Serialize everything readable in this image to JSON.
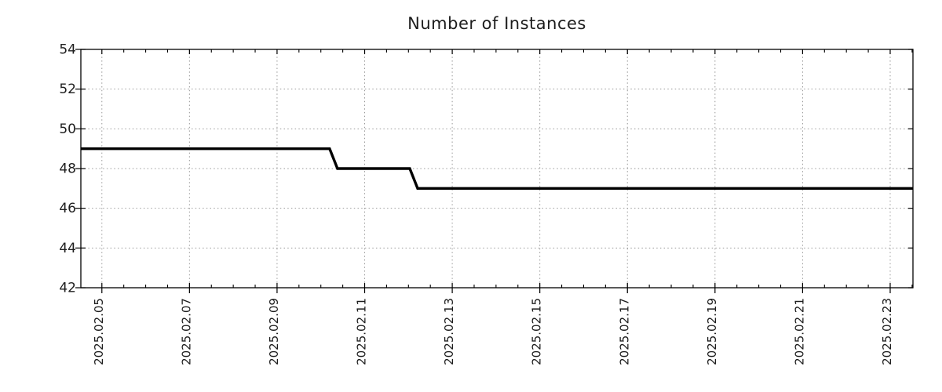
{
  "page": {
    "background_color": "#ffffff"
  },
  "chart_data": {
    "type": "line",
    "title": "Number of Instances",
    "xlabel": "",
    "ylabel": "",
    "legend": "none",
    "grid": true,
    "style": {
      "line_color": "#000000",
      "line_width": 3.4,
      "grid_color": "#9a9a9a",
      "axis_color": "#000000",
      "text_color": "#1d1d1d"
    },
    "x_axis": {
      "unit": "date (day of 2025.02)",
      "tick_days": [
        5,
        7,
        9,
        11,
        13,
        15,
        17,
        19,
        21,
        23
      ],
      "tick_labels": [
        "2025.02.05",
        "2025.02.07",
        "2025.02.09",
        "2025.02.11",
        "2025.02.13",
        "2025.02.15",
        "2025.02.17",
        "2025.02.19",
        "2025.02.21",
        "2025.02.23"
      ],
      "minor_step_days": 0.5,
      "xlim_days": [
        4.52,
        23.52
      ]
    },
    "y_axis": {
      "ticks": [
        42,
        44,
        46,
        48,
        50,
        52,
        54
      ],
      "ylim": [
        42,
        54
      ]
    },
    "series": [
      {
        "name": "Number of Instances",
        "points_day_value": [
          [
            4.52,
            49
          ],
          [
            10.2,
            49
          ],
          [
            10.38,
            48
          ],
          [
            12.03,
            48
          ],
          [
            12.21,
            47
          ],
          [
            23.52,
            47
          ]
        ]
      }
    ],
    "steps_summary": [
      {
        "value": 49,
        "until": "2025.02.10"
      },
      {
        "value": 48,
        "from": "2025.02.10",
        "until": "2025.02.12"
      },
      {
        "value": 47,
        "from": "2025.02.12",
        "until": "end of chart"
      }
    ]
  }
}
